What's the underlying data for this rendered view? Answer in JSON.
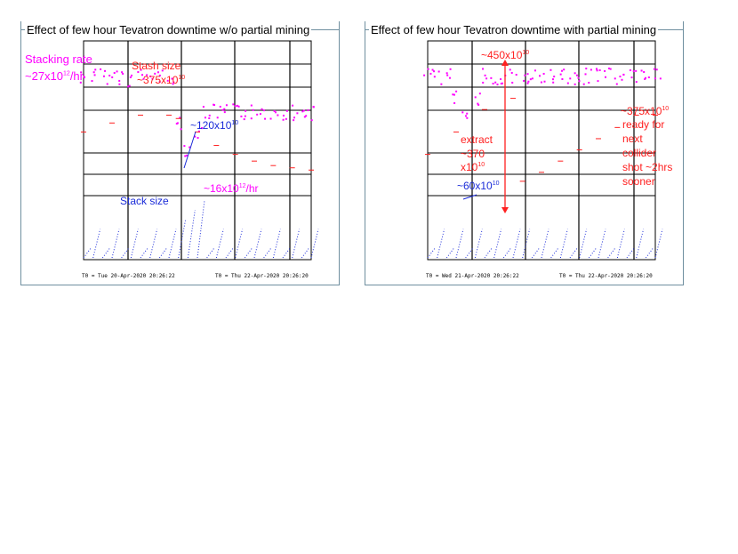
{
  "panels": [
    {
      "title": "Effect of few hour Tevatron downtime w/o partial mining",
      "annotations": {
        "stacking_rate": "Stacking rate",
        "rate_27": "~27x10",
        "rate_27_exp": "12",
        "rate_27_unit": "/hr",
        "stash_size": "Stash size",
        "stash_375": "~375x10",
        "stash_375_exp": "10",
        "stack_120": "~120x10",
        "stack_120_exp": "10",
        "rate_16": "~16x10",
        "rate_16_exp": "12",
        "rate_16_unit": "/hr",
        "stack_size": "Stack size"
      },
      "footer_left": "T0 = Tue 20-Apr-2020 20:26:22",
      "footer_right": "T0 = Thu 22-Apr-2020 20:26:20"
    },
    {
      "title": "Effect of few hour Tevatron downtime with partial mining",
      "annotations": {
        "stash_450": "~450x10",
        "stash_450_exp": "10",
        "stash_375": "~375x10",
        "stash_375_exp": "10",
        "ready_1": "ready for",
        "ready_2": "next",
        "ready_3": "collider",
        "ready_4": "shot ~2hrs",
        "ready_5": "sooner",
        "extract_1": "extract",
        "extract_2": "~370",
        "extract_3": "x10",
        "extract_3_exp": "10",
        "stack_60": "~60x10",
        "stack_60_exp": "10"
      },
      "footer_left": "T0 = Wed 21-Apr-2020 20:26:22",
      "footer_right": "T0 = Thu 22-Apr-2020 20:26:20"
    }
  ],
  "chart_data": [
    {
      "type": "scatter",
      "title": "Effect of few hour Tevatron downtime w/o partial mining",
      "series": [
        {
          "name": "Stacking rate",
          "color": "#ff00ff",
          "x": [
            0,
            1,
            2,
            3,
            4,
            5,
            6,
            7,
            8,
            9,
            10,
            11,
            12,
            13,
            14,
            15,
            16,
            17,
            18,
            19,
            20,
            21,
            22,
            23,
            24
          ],
          "values": [
            27,
            27,
            27,
            27,
            27,
            26,
            27,
            27,
            27,
            27,
            12,
            5,
            10,
            16,
            16,
            16,
            16,
            16,
            16,
            16,
            16,
            16,
            16,
            16,
            16
          ]
        },
        {
          "name": "Stash size",
          "color": "#ff2020",
          "x": [
            0,
            3,
            6,
            9,
            10,
            12,
            14,
            16,
            18,
            20,
            22,
            24
          ],
          "values": [
            300,
            340,
            375,
            375,
            360,
            300,
            240,
            200,
            170,
            150,
            140,
            130
          ]
        },
        {
          "name": "Stack size",
          "color": "#1a2bd8",
          "x": [
            0,
            1,
            2,
            3,
            4,
            5,
            6,
            7,
            8,
            9,
            10,
            11,
            12,
            13,
            14,
            15,
            16,
            17,
            18,
            19,
            20,
            21,
            22,
            23,
            24
          ],
          "values": [
            20,
            60,
            20,
            60,
            20,
            60,
            20,
            60,
            20,
            60,
            80,
            100,
            120,
            20,
            60,
            20,
            60,
            20,
            60,
            20,
            60,
            20,
            60,
            20,
            60
          ]
        }
      ]
    },
    {
      "type": "scatter",
      "title": "Effect of few hour Tevatron downtime with partial mining",
      "series": [
        {
          "name": "Stacking rate",
          "color": "#ff00ff",
          "x": [
            0,
            1,
            2,
            3,
            4,
            5,
            6,
            7,
            8,
            9,
            10,
            11,
            12,
            13,
            14,
            15,
            16,
            17,
            18,
            19,
            20,
            21,
            22,
            23,
            24
          ],
          "values": [
            27,
            27,
            27,
            20,
            16,
            20,
            27,
            27,
            27,
            27,
            27,
            27,
            27,
            27,
            27,
            27,
            27,
            27,
            27,
            27,
            27,
            27,
            27,
            27,
            27
          ]
        },
        {
          "name": "Stash size",
          "color": "#ff2020",
          "x": [
            0,
            3,
            6,
            9,
            10,
            12,
            14,
            16,
            18,
            20,
            22,
            24
          ],
          "values": [
            200,
            300,
            400,
            450,
            80,
            120,
            170,
            220,
            270,
            320,
            375,
            375
          ]
        },
        {
          "name": "Stack size",
          "color": "#1a2bd8",
          "x": [
            0,
            1,
            2,
            3,
            4,
            5,
            6,
            7,
            8,
            9,
            10,
            11,
            12,
            13,
            14,
            15,
            16,
            17,
            18,
            19,
            20,
            21,
            22,
            23,
            24
          ],
          "values": [
            20,
            60,
            20,
            60,
            20,
            60,
            20,
            60,
            20,
            60,
            60,
            20,
            60,
            20,
            60,
            20,
            60,
            20,
            60,
            20,
            60,
            20,
            60,
            20,
            60
          ]
        }
      ]
    }
  ]
}
